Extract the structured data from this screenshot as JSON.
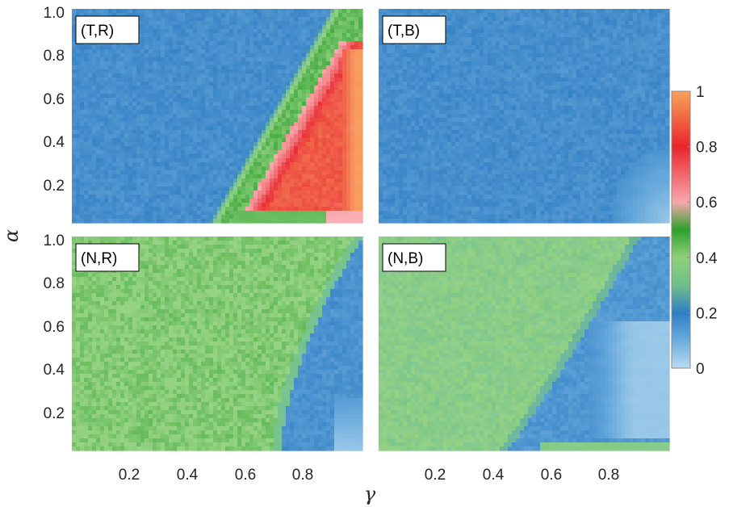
{
  "chart_data": {
    "type": "heatmap",
    "xlabel": "γ",
    "ylabel": "α",
    "xlim": [
      0.0,
      1.0
    ],
    "ylim": [
      0.0,
      1.0
    ],
    "x_ticks": [
      "0.2",
      "0.4",
      "0.6",
      "0.8"
    ],
    "y_ticks": [
      "0.2",
      "0.4",
      "0.6",
      "0.8",
      "1.0"
    ],
    "colorbar": {
      "range": [
        0,
        1
      ],
      "ticks": [
        "0",
        "0.2",
        "0.4",
        "0.6",
        "0.8",
        "1"
      ],
      "colors": [
        {
          "value": 0.0,
          "color": "#b8dcf0"
        },
        {
          "value": 0.12,
          "color": "#5da3d9"
        },
        {
          "value": 0.2,
          "color": "#2f7ec4"
        },
        {
          "value": 0.3,
          "color": "#6fbf8a"
        },
        {
          "value": 0.4,
          "color": "#8fd07a"
        },
        {
          "value": 0.5,
          "color": "#2da02d"
        },
        {
          "value": 0.6,
          "color": "#f7a8ad"
        },
        {
          "value": 0.8,
          "color": "#e8252b"
        },
        {
          "value": 1.0,
          "color": "#f9a35a"
        }
      ]
    },
    "panels": [
      {
        "label": "(T,R)",
        "description_values": {
          "background": 0.18,
          "peak_region": "high γ (0.75–0.98), low α; value rises toward 1 at γ≈0.95, α≈0.1–0.8",
          "band": "green band ~0.45–0.5 along diagonal from (γ≈0.55, α≈0) to (γ≈0.95, α≈0.95)"
        },
        "samples": [
          {
            "gamma": 0.2,
            "alpha": 0.8,
            "value": 0.18
          },
          {
            "gamma": 0.5,
            "alpha": 0.5,
            "value": 0.2
          },
          {
            "gamma": 0.6,
            "alpha": 0.1,
            "value": 0.45
          },
          {
            "gamma": 0.8,
            "alpha": 0.1,
            "value": 0.75
          },
          {
            "gamma": 0.9,
            "alpha": 0.3,
            "value": 0.8
          },
          {
            "gamma": 0.95,
            "alpha": 0.4,
            "value": 0.95
          }
        ]
      },
      {
        "label": "(T,B)",
        "description_values": {
          "background": 0.18,
          "low_region": "light blue ~0.05 at γ>0.85, α<0.3"
        },
        "samples": [
          {
            "gamma": 0.3,
            "alpha": 0.5,
            "value": 0.18
          },
          {
            "gamma": 0.9,
            "alpha": 0.1,
            "value": 0.05
          }
        ]
      },
      {
        "label": "(N,R)",
        "description_values": {
          "background": 0.42,
          "low_region": "blue ~0.15 at γ>0.75 below curved boundary, lightest near γ≈0.95, α≈0.1"
        },
        "samples": [
          {
            "gamma": 0.3,
            "alpha": 0.6,
            "value": 0.42
          },
          {
            "gamma": 0.85,
            "alpha": 0.2,
            "value": 0.15
          },
          {
            "gamma": 0.95,
            "alpha": 0.05,
            "value": 0.05
          }
        ]
      },
      {
        "label": "(N,B)",
        "description_values": {
          "background": 0.35,
          "low_region": "blue ~0.15 beyond a curve from (γ≈0.9, α≈1) to (γ≈0.45, α≈0.1); light ~0.05 at γ>0.7, α<0.5"
        },
        "samples": [
          {
            "gamma": 0.2,
            "alpha": 0.6,
            "value": 0.35
          },
          {
            "gamma": 0.7,
            "alpha": 0.3,
            "value": 0.12
          },
          {
            "gamma": 0.9,
            "alpha": 0.2,
            "value": 0.05
          }
        ]
      }
    ]
  }
}
